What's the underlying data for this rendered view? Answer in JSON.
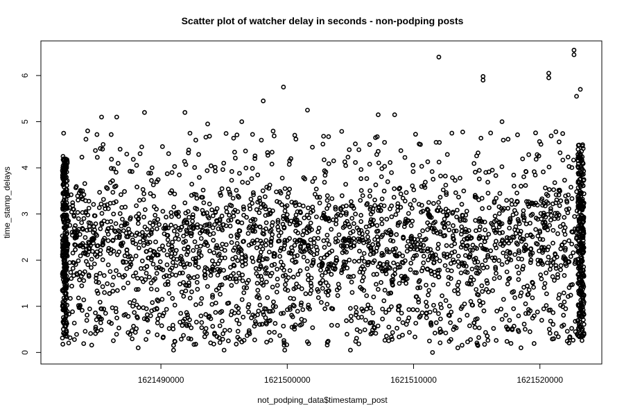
{
  "chart_data": {
    "type": "scatter",
    "title": "Scatter plot of watcher delay in seconds - non-podping posts",
    "xlabel": "not_podping_data$timestamp_post",
    "ylabel": "time_stamp_delays",
    "xlim": [
      1621480500,
      1621524900
    ],
    "ylim": [
      -0.25,
      6.75
    ],
    "x_ticks": [
      1621490000,
      1621500000,
      1621510000,
      1621520000
    ],
    "y_ticks": [
      0,
      1,
      2,
      3,
      4,
      5,
      6
    ],
    "grid": false,
    "legend": "none",
    "point_color": "#000000",
    "series": [
      {
        "sampled_from_visible_distribution": true,
        "points_note_text": "",
        "x_range": [
          1621482200,
          1621523500
        ],
        "bulk_y_range": [
          0.2,
          4.2
        ],
        "outliers": [
          {
            "x": 1621482300,
            "y": 4.75
          },
          {
            "x": 1621484200,
            "y": 4.8
          },
          {
            "x": 1621485300,
            "y": 5.1
          },
          {
            "x": 1621486500,
            "y": 5.1
          },
          {
            "x": 1621488700,
            "y": 5.2
          },
          {
            "x": 1621491900,
            "y": 5.2
          },
          {
            "x": 1621492300,
            "y": 4.75
          },
          {
            "x": 1621493700,
            "y": 4.95
          },
          {
            "x": 1621496400,
            "y": 5.0
          },
          {
            "x": 1621498100,
            "y": 5.45
          },
          {
            "x": 1621499700,
            "y": 5.75
          },
          {
            "x": 1621501600,
            "y": 5.25
          },
          {
            "x": 1621507200,
            "y": 5.15
          },
          {
            "x": 1621508500,
            "y": 5.15
          },
          {
            "x": 1621512000,
            "y": 6.4
          },
          {
            "x": 1621515500,
            "y": 5.9
          },
          {
            "x": 1621515500,
            "y": 5.98
          },
          {
            "x": 1621517000,
            "y": 5.0
          },
          {
            "x": 1621520700,
            "y": 6.05
          },
          {
            "x": 1621520700,
            "y": 5.95
          },
          {
            "x": 1621522700,
            "y": 6.55
          },
          {
            "x": 1621522700,
            "y": 6.45
          },
          {
            "x": 1621523200,
            "y": 5.7
          },
          {
            "x": 1621522900,
            "y": 5.55
          }
        ],
        "low_points": [
          {
            "x": 1621488200,
            "y": 0.1
          },
          {
            "x": 1621491000,
            "y": 0.05
          },
          {
            "x": 1621495000,
            "y": 0.05
          },
          {
            "x": 1621499800,
            "y": 0.05
          },
          {
            "x": 1621505000,
            "y": 0.05
          },
          {
            "x": 1621511500,
            "y": 0.0
          },
          {
            "x": 1621513500,
            "y": 0.1
          },
          {
            "x": 1621518500,
            "y": 0.1
          }
        ]
      }
    ]
  }
}
